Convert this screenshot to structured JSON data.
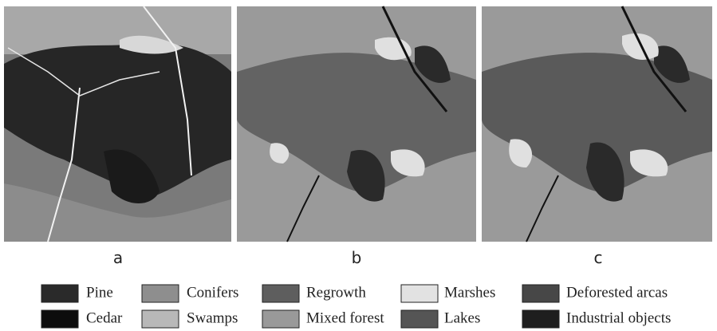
{
  "panels": [
    {
      "label": "a"
    },
    {
      "label": "b"
    },
    {
      "label": "c"
    }
  ],
  "legend": [
    "Pine",
    "Conifers",
    "Regrowth",
    "Marshes",
    "Deforested arcas",
    "Cedar",
    "Swamps",
    "Mixed forest",
    "Lakes",
    "Industrial objects"
  ]
}
